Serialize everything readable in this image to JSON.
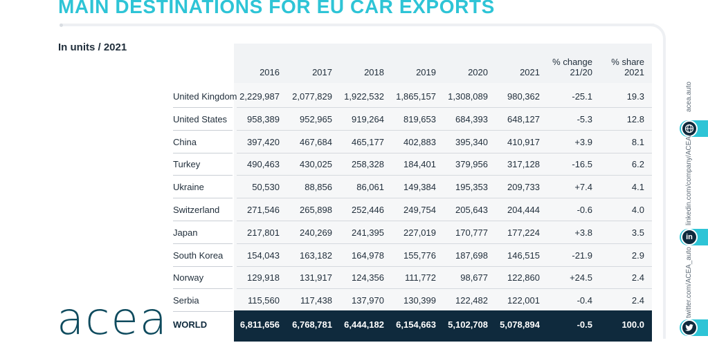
{
  "title": "MAIN DESTINATIONS FOR EU CAR EXPORTS",
  "subtitle": "In units / 2021",
  "columns": [
    "2016",
    "2017",
    "2018",
    "2019",
    "2020",
    "2021"
  ],
  "change_header": [
    "% change",
    "21/20"
  ],
  "share_header": [
    "% share",
    "2021"
  ],
  "rows": [
    {
      "country": "United Kingdom",
      "values": [
        "2,229,987",
        "2,077,829",
        "1,922,532",
        "1,865,157",
        "1,308,089",
        "980,362"
      ],
      "change": "-25.1",
      "share": "19.3"
    },
    {
      "country": "United States",
      "values": [
        "958,389",
        "952,965",
        "919,264",
        "819,653",
        "684,393",
        "648,127"
      ],
      "change": "-5.3",
      "share": "12.8"
    },
    {
      "country": "China",
      "values": [
        "397,420",
        "467,684",
        "465,177",
        "402,883",
        "395,340",
        "410,917"
      ],
      "change": "+3.9",
      "share": "8.1"
    },
    {
      "country": "Turkey",
      "values": [
        "490,463",
        "430,025",
        "258,328",
        "184,401",
        "379,956",
        "317,128"
      ],
      "change": "-16.5",
      "share": "6.2"
    },
    {
      "country": "Ukraine",
      "values": [
        "50,530",
        "88,856",
        "86,061",
        "149,384",
        "195,353",
        "209,733"
      ],
      "change": "+7.4",
      "share": "4.1"
    },
    {
      "country": "Switzerland",
      "values": [
        "271,546",
        "265,898",
        "252,446",
        "249,754",
        "205,643",
        "204,444"
      ],
      "change": "-0.6",
      "share": "4.0"
    },
    {
      "country": "Japan",
      "values": [
        "217,801",
        "240,269",
        "241,395",
        "227,019",
        "170,777",
        "177,224"
      ],
      "change": "+3.8",
      "share": "3.5"
    },
    {
      "country": "South Korea",
      "values": [
        "154,043",
        "163,182",
        "164,978",
        "155,776",
        "187,698",
        "146,515"
      ],
      "change": "-21.9",
      "share": "2.9"
    },
    {
      "country": "Norway",
      "values": [
        "129,918",
        "131,917",
        "124,356",
        "111,772",
        "98,677",
        "122,860"
      ],
      "change": "+24.5",
      "share": "2.4"
    },
    {
      "country": "Serbia",
      "values": [
        "115,560",
        "117,438",
        "137,970",
        "130,399",
        "122,482",
        "122,001"
      ],
      "change": "-0.4",
      "share": "2.4"
    }
  ],
  "world": {
    "label": "WORLD",
    "values": [
      "6,811,656",
      "6,768,781",
      "6,444,182",
      "6,154,663",
      "5,102,708",
      "5,078,894"
    ],
    "change": "-0.5",
    "share": "100.0"
  },
  "logo": "acea",
  "social": {
    "web": "acea.auto",
    "linkedin": "linkedin.com/company/ACEA/",
    "twitter": "twitter.com/ACEA_auto",
    "web_icon": "globe-icon",
    "linkedin_icon": "linkedin-icon",
    "twitter_icon": "twitter-icon"
  },
  "colors": {
    "accent": "#2ec4d6",
    "dark": "#0f2a3d",
    "text": "#1f2d3a"
  }
}
